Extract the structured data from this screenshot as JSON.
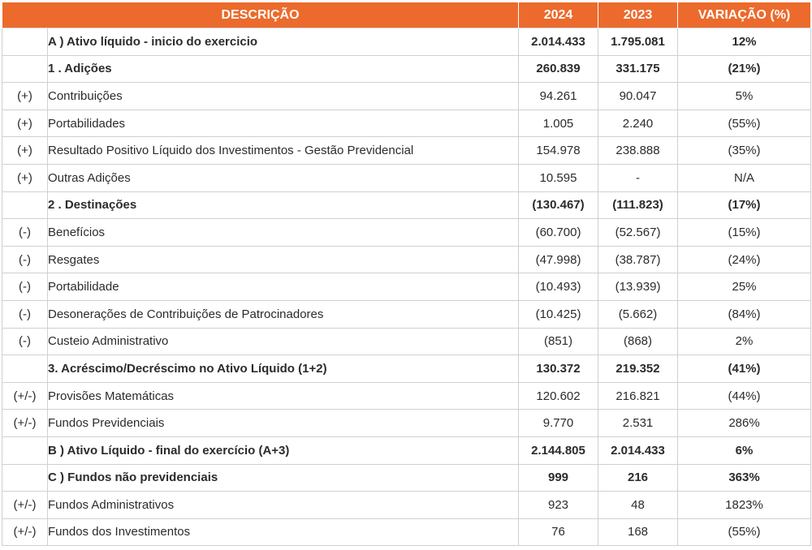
{
  "header": {
    "descricao": "DESCRIÇÃO",
    "y2024": "2024",
    "y2023": "2023",
    "variacao": "VARIAÇÃO (%)"
  },
  "rows": [
    {
      "sign": "",
      "label": "A ) Ativo líquido - inicio do exercicio",
      "v2024": "2.014.433",
      "v2023": "1.795.081",
      "var": "12%",
      "bold": true
    },
    {
      "sign": "",
      "label": "1 . Adições",
      "v2024": "260.839",
      "v2023": "331.175",
      "var": "(21%)",
      "bold": true
    },
    {
      "sign": "(+)",
      "label": "Contribuições",
      "v2024": "94.261",
      "v2023": "90.047",
      "var": "5%",
      "bold": false
    },
    {
      "sign": "(+)",
      "label": "Portabilidades",
      "v2024": "1.005",
      "v2023": "2.240",
      "var": "(55%)",
      "bold": false
    },
    {
      "sign": "(+)",
      "label": "Resultado Positivo Líquido dos Investimentos - Gestão Previdencial",
      "v2024": "154.978",
      "v2023": "238.888",
      "var": "(35%)",
      "bold": false
    },
    {
      "sign": "(+)",
      "label": "Outras Adições",
      "v2024": "10.595",
      "v2023": "-",
      "var": "N/A",
      "bold": false
    },
    {
      "sign": "",
      "label": "2 . Destinações",
      "v2024": "(130.467)",
      "v2023": "(111.823)",
      "var": "(17%)",
      "bold": true
    },
    {
      "sign": "(-)",
      "label": "Benefícios",
      "v2024": "(60.700)",
      "v2023": "(52.567)",
      "var": "(15%)",
      "bold": false
    },
    {
      "sign": "(-)",
      "label": "Resgates",
      "v2024": "(47.998)",
      "v2023": "(38.787)",
      "var": "(24%)",
      "bold": false
    },
    {
      "sign": "(-)",
      "label": "Portabilidade",
      "v2024": "(10.493)",
      "v2023": "(13.939)",
      "var": "25%",
      "bold": false
    },
    {
      "sign": "(-)",
      "label": "Desonerações de Contribuições de Patrocinadores",
      "v2024": "(10.425)",
      "v2023": "(5.662)",
      "var": "(84%)",
      "bold": false
    },
    {
      "sign": "(-)",
      "label": "Custeio Administrativo",
      "v2024": "(851)",
      "v2023": "(868)",
      "var": "2%",
      "bold": false
    },
    {
      "sign": "",
      "label": "3. Acréscimo/Decréscimo no Ativo Líquido (1+2)",
      "v2024": "130.372",
      "v2023": "219.352",
      "var": "(41%)",
      "bold": true
    },
    {
      "sign": "(+/-)",
      "label": "Provisões Matemáticas",
      "v2024": "120.602",
      "v2023": "216.821",
      "var": "(44%)",
      "bold": false
    },
    {
      "sign": "(+/-)",
      "label": "Fundos Previdenciais",
      "v2024": "9.770",
      "v2023": "2.531",
      "var": "286%",
      "bold": false
    },
    {
      "sign": "",
      "label": "B ) Ativo Líquido - final do exercício (A+3)",
      "v2024": "2.144.805",
      "v2023": "2.014.433",
      "var": "6%",
      "bold": true
    },
    {
      "sign": "",
      "label": "C ) Fundos não previdenciais",
      "v2024": "999",
      "v2023": "216",
      "var": "363%",
      "bold": true
    },
    {
      "sign": "(+/-)",
      "label": "Fundos Administrativos",
      "v2024": "923",
      "v2023": "48",
      "var": "1823%",
      "bold": false
    },
    {
      "sign": "(+/-)",
      "label": "Fundos dos Investimentos",
      "v2024": "76",
      "v2023": "168",
      "var": "(55%)",
      "bold": false
    }
  ]
}
